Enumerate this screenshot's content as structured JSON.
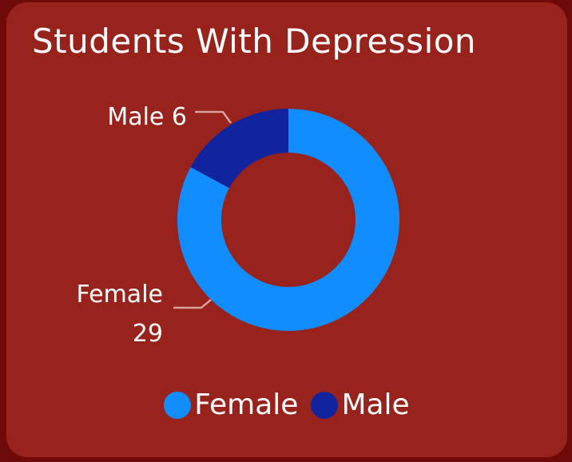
{
  "chart_data": {
    "type": "pie",
    "title": "Students With Depression",
    "categories": [
      "Female",
      "Male"
    ],
    "values": [
      29,
      6
    ],
    "colors": [
      "#118dff",
      "#12239e"
    ],
    "labels": [
      "Female 29",
      "Male 6"
    ],
    "legend": {
      "position": "bottom",
      "entries": [
        "Female",
        "Male"
      ]
    }
  },
  "colors": {
    "background": "#6e0a0a",
    "card": "#98231c",
    "text": "#ffffff",
    "leader_line": "#d9a19c"
  }
}
